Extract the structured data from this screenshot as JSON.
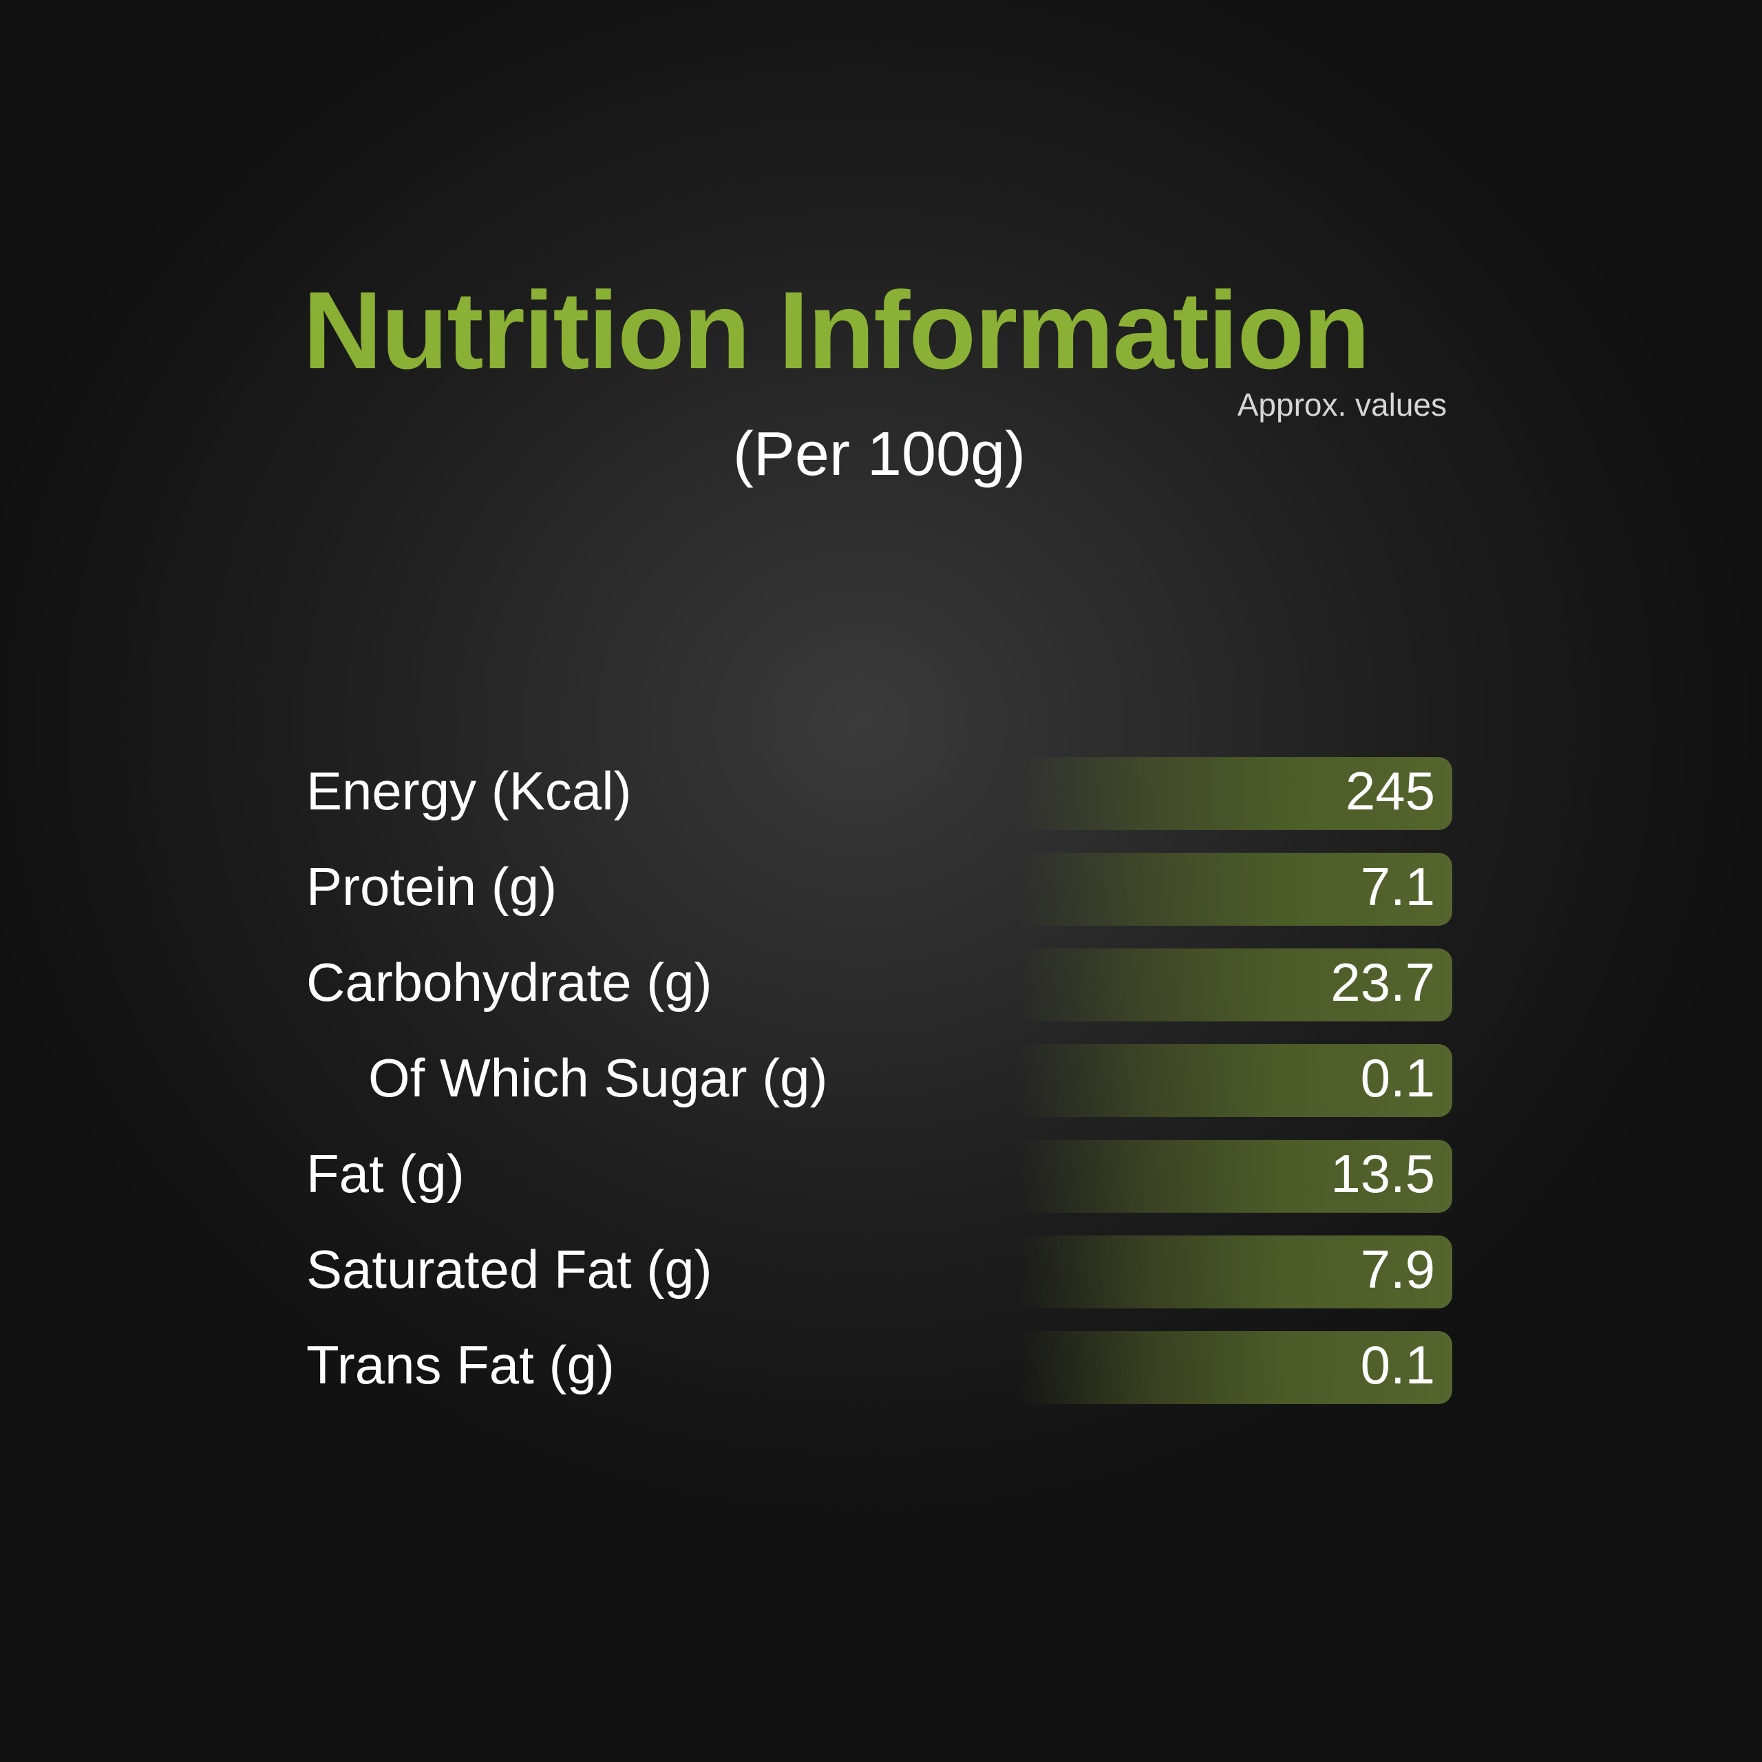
{
  "header": {
    "title": "Nutrition Information",
    "note": "Approx. values",
    "subtitle": "(Per 100g)"
  },
  "colors": {
    "title": "#8ab135",
    "bar": "#55652d",
    "text": "#ffffff",
    "background": "#1c1c1c"
  },
  "rows": [
    {
      "label": "Energy (Kcal)",
      "value": "245"
    },
    {
      "label": "Protein (g)",
      "value": "7.1"
    },
    {
      "label": "Carbohydrate (g)",
      "value": "23.7"
    },
    {
      "label": "Of Which Sugar (g)",
      "value": "0.1"
    },
    {
      "label": "Fat (g)",
      "value": "13.5"
    },
    {
      "label": "Saturated Fat (g)",
      "value": "7.9"
    },
    {
      "label": "Trans Fat (g)",
      "value": "0.1"
    }
  ]
}
